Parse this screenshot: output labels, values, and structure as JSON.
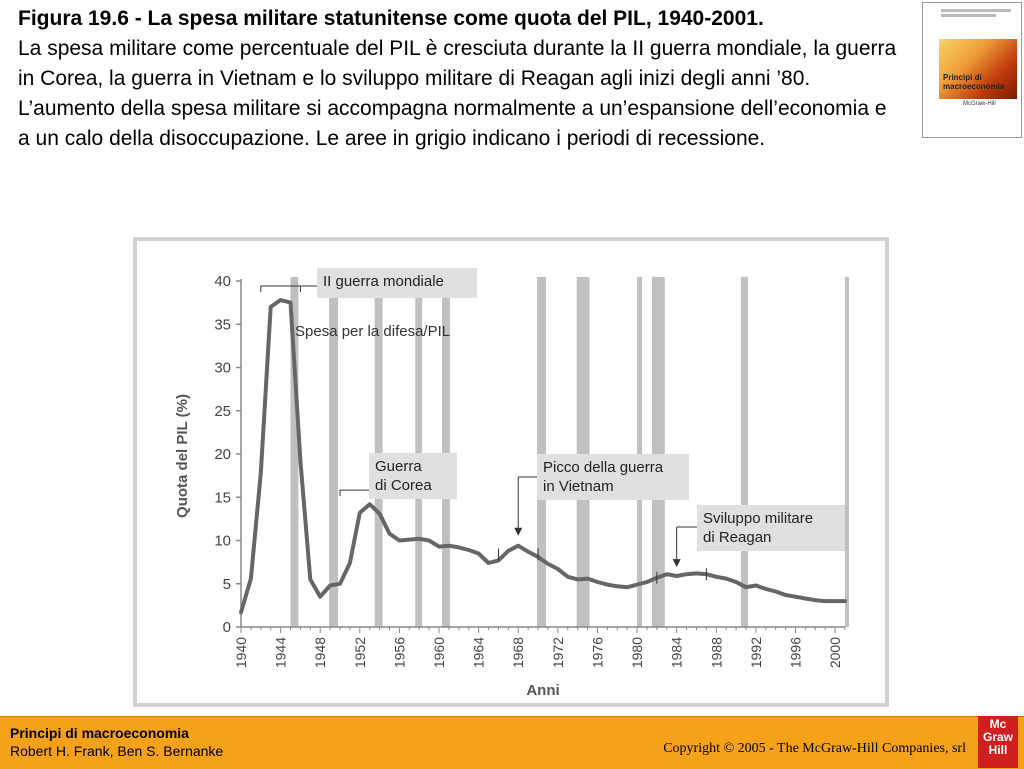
{
  "header": {
    "title": "Figura 19.6 - La spesa militare statunitense come quota del PIL, 1940-2001.",
    "description": "La spesa militare come percentuale del PIL è cresciuta durante la II guerra mondiale, la guerra in Corea, la guerra in Vietnam e lo sviluppo militare di Reagan agli inizi degli anni ’80. L’aumento della spesa militare si accompagna normalmente a un’espansione dell’economia e a un calo della disoccupazione. Le aree in grigio indicano i periodi di recessione."
  },
  "book_cover": {
    "title": "Principi di macroeconomia",
    "publisher": "McGraw-Hill"
  },
  "footer": {
    "book_title": "Principi di macroeconomia",
    "authors": "Robert H. Frank, Ben S. Bernanke",
    "copyright": "Copyright © 2005 - The McGraw-Hill Companies, srl",
    "logo": "Mc Graw Hill"
  },
  "colors": {
    "line": "#666666",
    "recession": "#c0c0c0",
    "callout_bg": "#e0e0e0",
    "footer_bg": "#f5a21a",
    "logo_bg": "#d01f1f"
  },
  "chart_data": {
    "type": "line",
    "title": "",
    "xlabel": "Anni",
    "ylabel": "Quota del PIL (%)",
    "xlim": [
      1940,
      2001
    ],
    "ylim": [
      0,
      40
    ],
    "y_ticks": [
      0,
      5,
      10,
      15,
      20,
      25,
      30,
      35,
      40
    ],
    "x_ticks": [
      1940,
      1944,
      1948,
      1952,
      1956,
      1960,
      1964,
      1968,
      1972,
      1976,
      1980,
      1984,
      1988,
      1992,
      1996,
      2000
    ],
    "series": [
      {
        "name": "Spesa per la difesa/PIL",
        "x": [
          1940,
          1941,
          1942,
          1943,
          1944,
          1945,
          1946,
          1947,
          1948,
          1949,
          1950,
          1951,
          1952,
          1953,
          1954,
          1955,
          1956,
          1957,
          1958,
          1959,
          1960,
          1961,
          1962,
          1963,
          1964,
          1965,
          1966,
          1967,
          1968,
          1969,
          1970,
          1971,
          1972,
          1973,
          1974,
          1975,
          1976,
          1977,
          1978,
          1979,
          1980,
          1981,
          1982,
          1983,
          1984,
          1985,
          1986,
          1987,
          1988,
          1989,
          1990,
          1991,
          1992,
          1993,
          1994,
          1995,
          1996,
          1997,
          1998,
          1999,
          2000,
          2001
        ],
        "values": [
          1.7,
          5.6,
          17.8,
          37.0,
          37.8,
          37.5,
          19.2,
          5.5,
          3.5,
          4.8,
          5.0,
          7.4,
          13.2,
          14.2,
          13.1,
          10.8,
          10.0,
          10.1,
          10.2,
          10.0,
          9.3,
          9.4,
          9.2,
          8.9,
          8.5,
          7.4,
          7.7,
          8.8,
          9.4,
          8.7,
          8.1,
          7.3,
          6.7,
          5.8,
          5.5,
          5.6,
          5.2,
          4.9,
          4.7,
          4.6,
          4.9,
          5.2,
          5.7,
          6.1,
          5.9,
          6.1,
          6.2,
          6.1,
          5.8,
          5.6,
          5.2,
          4.6,
          4.8,
          4.4,
          4.1,
          3.7,
          3.5,
          3.3,
          3.1,
          3.0,
          3.0,
          3.0
        ]
      }
    ],
    "recessions": [
      [
        1945,
        1945.8
      ],
      [
        1948.9,
        1949.8
      ],
      [
        1953.5,
        1954.3
      ],
      [
        1957.6,
        1958.3
      ],
      [
        1960.3,
        1961.1
      ],
      [
        1969.9,
        1970.8
      ],
      [
        1973.9,
        1975.2
      ],
      [
        1980.0,
        1980.5
      ],
      [
        1981.5,
        1982.8
      ],
      [
        1990.5,
        1991.2
      ],
      [
        2001.0,
        2001.7
      ]
    ],
    "annotations": [
      {
        "label": "II guerra mondiale",
        "x_range": [
          1942,
          1946
        ],
        "y": 37.8
      },
      {
        "label": "Spesa per la difesa/PIL",
        "x": 1946,
        "y": 34
      },
      {
        "label": "Guerra di Corea",
        "x_range": [
          1950,
          1953
        ],
        "y": 14.2
      },
      {
        "label": "Picco della guerra in Vietnam",
        "x": 1968,
        "y": 9.4
      },
      {
        "label": "Sviluppo militare di Reagan",
        "x": 1984,
        "y": 6.0
      }
    ]
  }
}
